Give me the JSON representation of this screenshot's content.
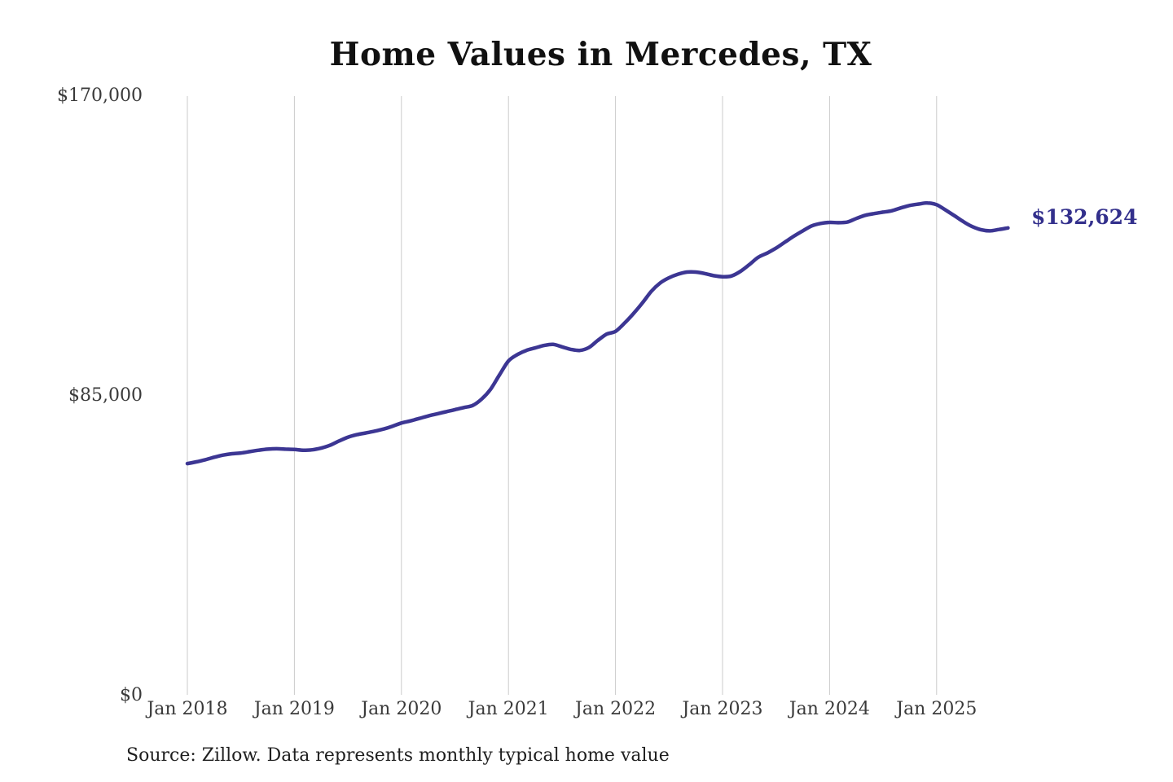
{
  "chart_data": {
    "type": "line",
    "title": "Home Values in Mercedes, TX",
    "xlabel": "",
    "ylabel": "",
    "ylim": [
      0,
      170000
    ],
    "grid": "vertical-only",
    "grid_color": "#cbcbcb",
    "line_color": "#3c3693",
    "end_label": "$132,624",
    "latest_value": 132624,
    "source_note": "Source: Zillow. Data represents monthly typical home value",
    "y_ticks": [
      {
        "label": "$170,000",
        "value": 170000
      },
      {
        "label": "$85,000",
        "value": 85000
      },
      {
        "label": "$0",
        "value": 0
      }
    ],
    "x_ticks": [
      {
        "label": "Jan 2018",
        "month_index": 0
      },
      {
        "label": "Jan 2019",
        "month_index": 12
      },
      {
        "label": "Jan 2020",
        "month_index": 24
      },
      {
        "label": "Jan 2021",
        "month_index": 36
      },
      {
        "label": "Jan 2022",
        "month_index": 48
      },
      {
        "label": "Jan 2023",
        "month_index": 60
      },
      {
        "label": "Jan 2024",
        "month_index": 72
      },
      {
        "label": "Jan 2025",
        "month_index": 84
      }
    ],
    "series": [
      {
        "name": "Monthly typical home value",
        "months": [
          "2018-01",
          "2018-02",
          "2018-03",
          "2018-04",
          "2018-05",
          "2018-06",
          "2018-07",
          "2018-08",
          "2018-09",
          "2018-10",
          "2018-11",
          "2018-12",
          "2019-01",
          "2019-02",
          "2019-03",
          "2019-04",
          "2019-05",
          "2019-06",
          "2019-07",
          "2019-08",
          "2019-09",
          "2019-10",
          "2019-11",
          "2019-12",
          "2020-01",
          "2020-02",
          "2020-03",
          "2020-04",
          "2020-05",
          "2020-06",
          "2020-07",
          "2020-08",
          "2020-09",
          "2020-10",
          "2020-11",
          "2020-12",
          "2021-01",
          "2021-02",
          "2021-03",
          "2021-04",
          "2021-05",
          "2021-06",
          "2021-07",
          "2021-08",
          "2021-09",
          "2021-10",
          "2021-11",
          "2021-12",
          "2022-01",
          "2022-02",
          "2022-03",
          "2022-04",
          "2022-05",
          "2022-06",
          "2022-07",
          "2022-08",
          "2022-09",
          "2022-10",
          "2022-11",
          "2022-12",
          "2023-01",
          "2023-02",
          "2023-03",
          "2023-04",
          "2023-05",
          "2023-06",
          "2023-07",
          "2023-08",
          "2023-09",
          "2023-10",
          "2023-11",
          "2023-12",
          "2024-01",
          "2024-02",
          "2024-03",
          "2024-04",
          "2024-05",
          "2024-06",
          "2024-07",
          "2024-08",
          "2024-09",
          "2024-10",
          "2024-11",
          "2024-12",
          "2025-01",
          "2025-02",
          "2025-03",
          "2025-04",
          "2025-05",
          "2025-06",
          "2025-07",
          "2025-08",
          "2025-09"
        ],
        "values": [
          65800,
          66300,
          66900,
          67600,
          68200,
          68600,
          68800,
          69200,
          69600,
          69900,
          70000,
          69900,
          69800,
          69600,
          69700,
          70200,
          71000,
          72200,
          73300,
          74000,
          74500,
          75000,
          75600,
          76400,
          77300,
          77900,
          78600,
          79300,
          79900,
          80500,
          81100,
          81700,
          82300,
          84100,
          86900,
          91000,
          94900,
          96700,
          97900,
          98600,
          99300,
          99600,
          98900,
          98200,
          97900,
          98700,
          100700,
          102500,
          103300,
          105600,
          108300,
          111300,
          114600,
          117000,
          118500,
          119500,
          120100,
          120100,
          119700,
          119100,
          118800,
          119000,
          120300,
          122200,
          124300,
          125500,
          126900,
          128600,
          130300,
          131800,
          133200,
          133900,
          134200,
          134100,
          134300,
          135300,
          136200,
          136700,
          137100,
          137500,
          138300,
          139000,
          139400,
          139700,
          139200,
          137700,
          136100,
          134400,
          133000,
          132100,
          131800,
          132200,
          132624
        ]
      }
    ]
  }
}
